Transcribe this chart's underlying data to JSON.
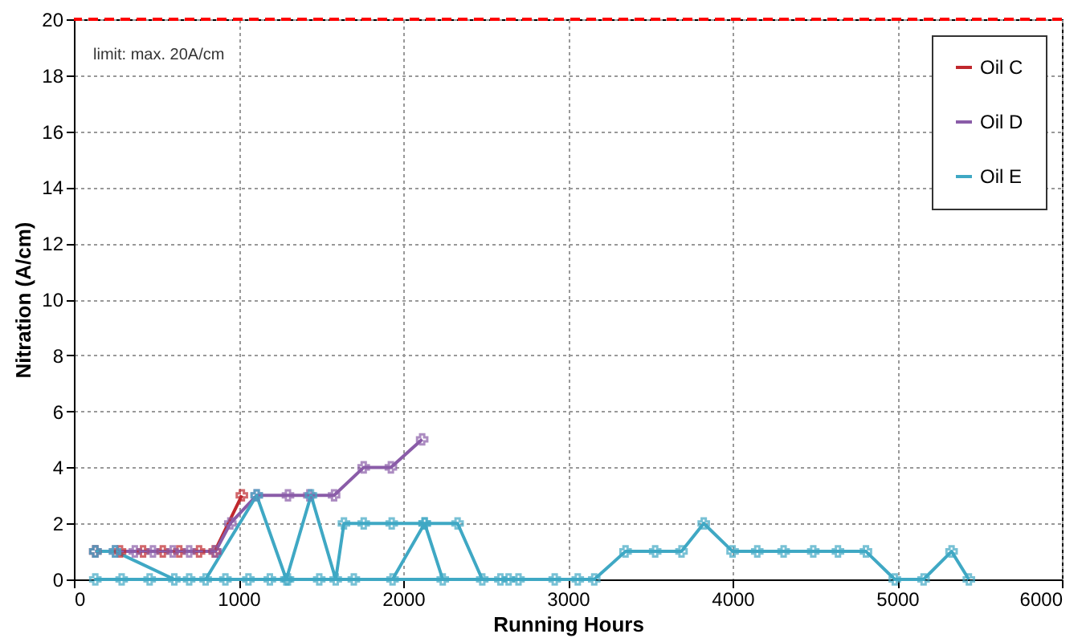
{
  "chart_data": {
    "type": "line",
    "xlabel": "Running Hours",
    "ylabel": "Nitration (A/cm)",
    "xlim": [
      0,
      6000
    ],
    "xticks": [
      0,
      1000,
      2000,
      3000,
      4000,
      5000,
      6000
    ],
    "ylim": [
      0,
      20
    ],
    "yticks": [
      0,
      2,
      4,
      6,
      8,
      10,
      12,
      14,
      16,
      18,
      20
    ],
    "grid": true,
    "legend": "top right",
    "marker": "cross",
    "annotations": [
      "limit: max. 20A/cm"
    ],
    "ref_lines": [
      {
        "axis": "y",
        "value": 20,
        "color": "#ff0000",
        "line_style": "dashed"
      }
    ],
    "series": [
      {
        "name": "Oil C",
        "color": "#c0282d",
        "x": [
          130,
          280,
          420,
          540,
          640,
          760,
          855,
          1020
        ],
        "values": [
          1,
          1,
          1,
          1,
          1,
          1,
          1,
          3
        ]
      },
      {
        "name": "Oil D",
        "color": "#8a5ca8",
        "x": [
          130,
          250,
          370,
          480,
          600,
          700,
          860,
          950,
          1110,
          1300,
          1430,
          1580,
          1760,
          1925,
          2115
        ],
        "values": [
          1,
          1,
          1,
          1,
          1,
          1,
          1,
          2,
          3,
          3,
          3,
          3,
          4,
          4,
          5
        ]
      },
      {
        "name": "Oil E",
        "color": "#3fa8c4",
        "x": [
          130,
          250,
          610,
          700,
          800,
          1110,
          1290,
          1440,
          1590,
          1640,
          1760,
          1930,
          2130,
          2330,
          2480,
          2240,
          2130,
          1935,
          1700,
          1490,
          1300,
          1190,
          1060,
          920,
          460,
          290,
          130,
          2590,
          2640,
          2700,
          2920,
          3060,
          3160,
          3350,
          3530,
          3690,
          3825,
          4000,
          4150,
          4310,
          4490,
          4640,
          4810,
          4985,
          5160,
          5330,
          5435
        ],
        "values": [
          1,
          1,
          0,
          0,
          0,
          3,
          0,
          3,
          0,
          2,
          2,
          2,
          2,
          2,
          0,
          0,
          2,
          0,
          0,
          0,
          0,
          0,
          0,
          0,
          0,
          0,
          0,
          0,
          0,
          0,
          0,
          0,
          0,
          1,
          1,
          1,
          2,
          1,
          1,
          1,
          1,
          1,
          1,
          0,
          0,
          1,
          0
        ]
      }
    ]
  }
}
